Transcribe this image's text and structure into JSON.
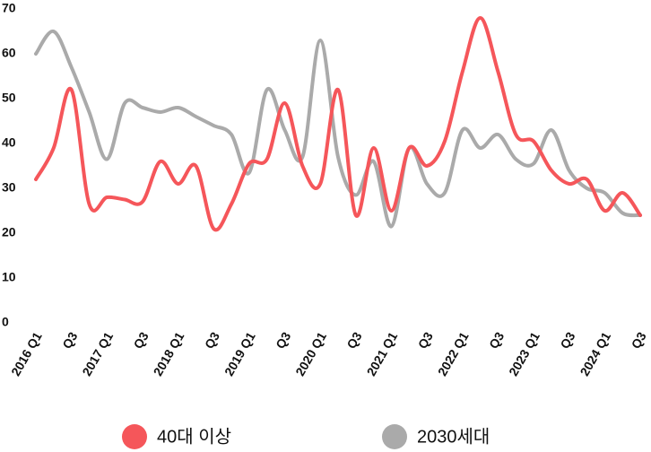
{
  "chart_data": {
    "type": "line",
    "categories": [
      "2016 Q1",
      null,
      "Q3",
      null,
      "2017 Q1",
      null,
      "Q3",
      null,
      "2018 Q1",
      null,
      "Q3",
      null,
      "2019 Q1",
      null,
      "Q3",
      null,
      "2020 Q1",
      null,
      "Q3",
      null,
      "2021 Q1",
      null,
      "Q3",
      null,
      "2022 Q1",
      null,
      "Q3",
      null,
      "2023 Q1",
      null,
      "Q3",
      null,
      "2024 Q1",
      null,
      "Q3"
    ],
    "series": [
      {
        "name": "40대 이상",
        "color": "#f5565a",
        "values": [
          32,
          39,
          52,
          26.5,
          28,
          27.5,
          27,
          36,
          31,
          35,
          21,
          26.5,
          35.5,
          36.5,
          49,
          35,
          31,
          52,
          24,
          39,
          25,
          39,
          35,
          40.5,
          56,
          68,
          56,
          42,
          40.5,
          34,
          31,
          32,
          25,
          29,
          24
        ]
      },
      {
        "name": "2030세대",
        "color": "#aaaaaa",
        "values": [
          60,
          65,
          57,
          47,
          36.5,
          49,
          48,
          47,
          48,
          46,
          44,
          42,
          33.5,
          52,
          43,
          37,
          63,
          37,
          28.5,
          36,
          21.5,
          39,
          31,
          29,
          43,
          39,
          42,
          36.5,
          35.5,
          43,
          34,
          30,
          29,
          24.5,
          24
        ]
      }
    ],
    "ylim": [
      0,
      70
    ],
    "yticks": [
      0,
      10,
      20,
      30,
      40,
      50,
      60,
      70
    ],
    "grid": false
  }
}
